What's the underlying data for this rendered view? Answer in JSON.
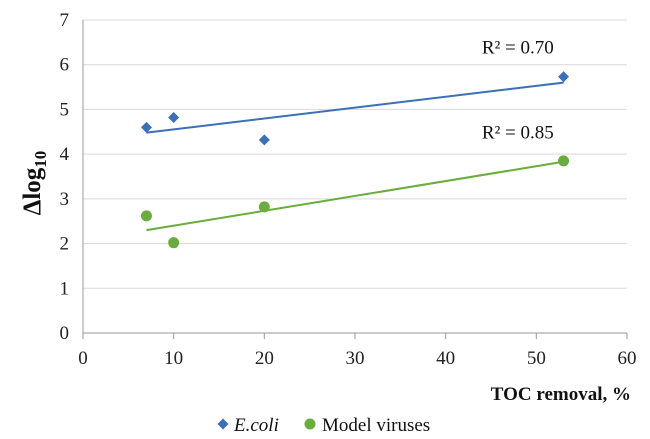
{
  "chart_data": {
    "type": "scatter",
    "title": "",
    "xlabel": "TOC removal, %",
    "ylabel_main": "Δlog",
    "ylabel_sub": "10",
    "xlim": [
      0,
      60
    ],
    "ylim": [
      0,
      7
    ],
    "x_ticks": [
      "0",
      "10",
      "20",
      "30",
      "40",
      "50",
      "60"
    ],
    "y_ticks": [
      "0",
      "1",
      "2",
      "3",
      "4",
      "5",
      "6",
      "7"
    ],
    "grid": "horizontal",
    "legend_position": "bottom",
    "series": [
      {
        "name": "E.coli",
        "marker": "diamond",
        "color": "#3b6fb6",
        "points": [
          [
            7,
            4.6
          ],
          [
            10,
            4.82
          ],
          [
            20,
            4.32
          ],
          [
            53,
            5.73
          ]
        ],
        "trendline": [
          [
            7,
            4.48
          ],
          [
            53,
            5.6
          ]
        ],
        "r2_label": "R² = 0.70",
        "r2_at": [
          44,
          6.25
        ]
      },
      {
        "name": "Model viruses",
        "marker": "circle",
        "color": "#6aac3e",
        "points": [
          [
            7,
            2.62
          ],
          [
            10,
            2.02
          ],
          [
            20,
            2.82
          ],
          [
            53,
            3.85
          ]
        ],
        "trendline": [
          [
            7,
            2.3
          ],
          [
            53,
            3.83
          ]
        ],
        "r2_label": "R² = 0.85",
        "r2_at": [
          44,
          4.35
        ]
      }
    ]
  }
}
